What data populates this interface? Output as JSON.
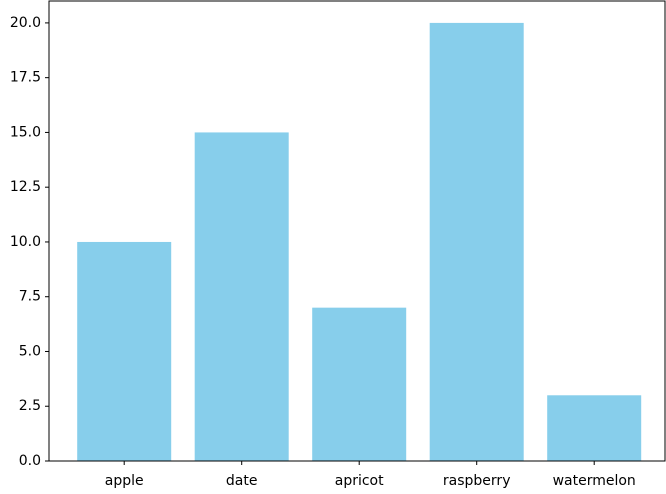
{
  "chart_data": {
    "type": "bar",
    "categories": [
      "apple",
      "date",
      "apricot",
      "raspberry",
      "watermelon"
    ],
    "values": [
      10,
      15,
      7,
      20,
      3
    ],
    "color": "#87ceeb",
    "ylim": [
      0,
      21
    ],
    "yticks": [
      {
        "value": 0,
        "label": "0.0"
      },
      {
        "value": 2.5,
        "label": "2.5"
      },
      {
        "value": 5,
        "label": "5.0"
      },
      {
        "value": 7.5,
        "label": "7.5"
      },
      {
        "value": 10,
        "label": "10.0"
      },
      {
        "value": 12.5,
        "label": "12.5"
      },
      {
        "value": 15,
        "label": "15.0"
      },
      {
        "value": 17.5,
        "label": "17.5"
      },
      {
        "value": 20,
        "label": "20.0"
      }
    ],
    "grid": false
  }
}
